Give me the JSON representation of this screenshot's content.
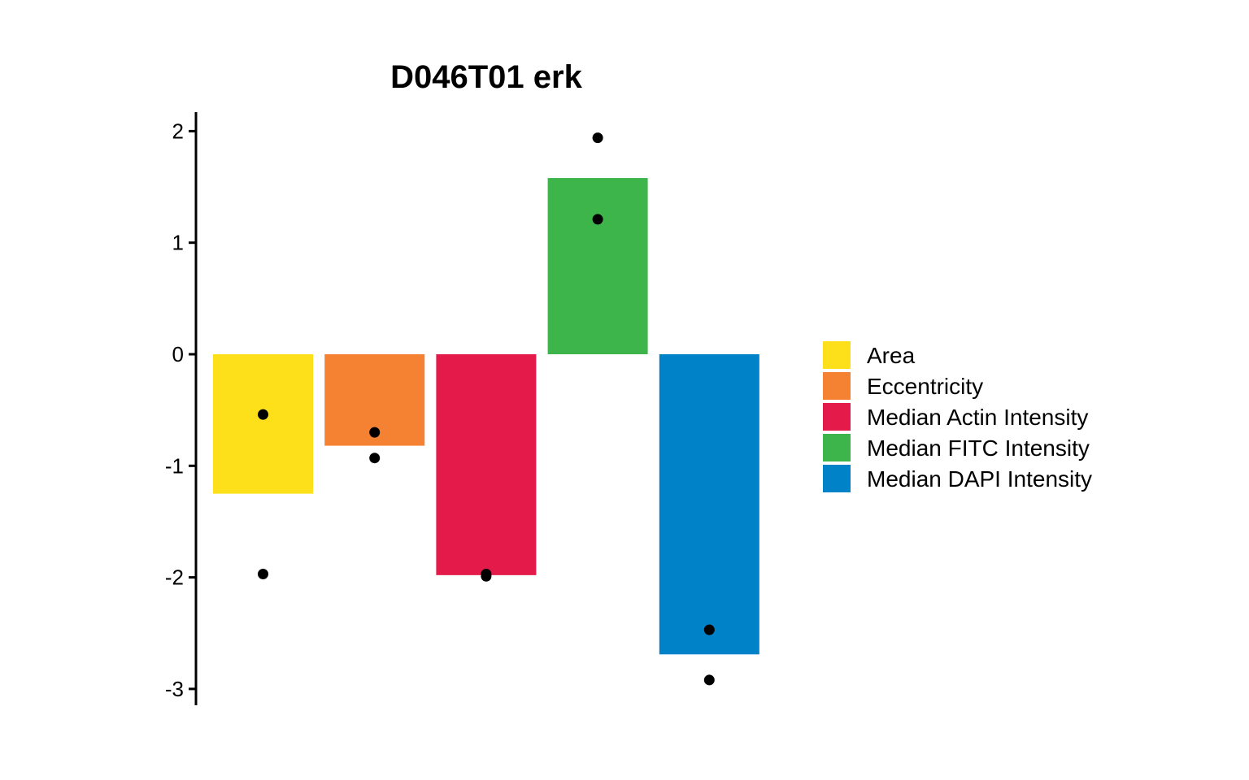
{
  "chart_data": {
    "type": "bar",
    "title": "D046T01 erk",
    "xlabel": "",
    "ylabel": "",
    "ylim": [
      -3.15,
      2.2
    ],
    "yticks": [
      2,
      1,
      0,
      -1,
      -2,
      -3
    ],
    "grid": false,
    "legend_position": "right",
    "categories": [
      "Area",
      "Eccentricity",
      "Median Actin Intensity",
      "Median FITC Intensity",
      "Median DAPI Intensity"
    ],
    "values": [
      -1.25,
      -0.82,
      -1.98,
      1.58,
      -2.69
    ],
    "colors": [
      "#FDE01A",
      "#F58233",
      "#E41A4A",
      "#3DB54A",
      "#0082C8"
    ],
    "points": [
      [
        -0.54,
        -1.97
      ],
      [
        -0.7,
        -0.93
      ],
      [
        -1.97,
        -1.99
      ],
      [
        1.94,
        1.21
      ],
      [
        -2.47,
        -2.92
      ]
    ]
  }
}
